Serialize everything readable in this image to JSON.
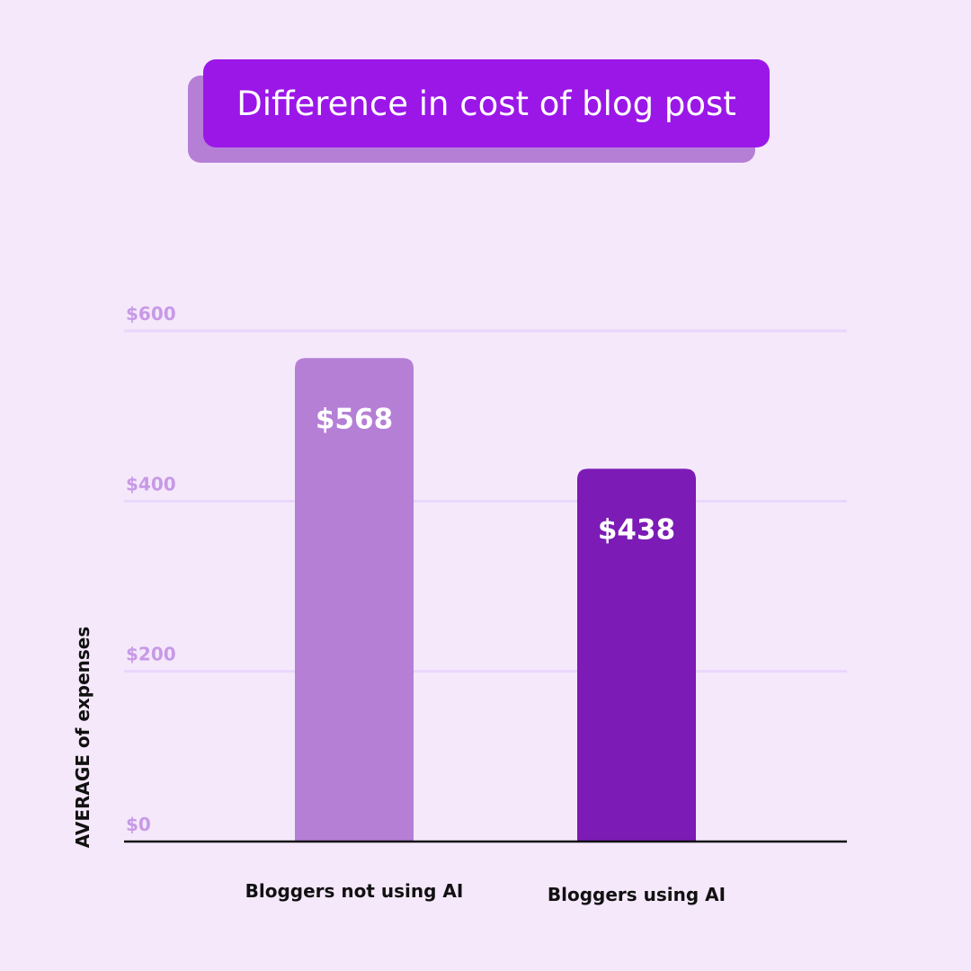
{
  "title": "Difference in cost of blog post",
  "chart_data": {
    "type": "bar",
    "categories": [
      "Bloggers not using AI",
      "Bloggers using AI"
    ],
    "values": [
      568,
      438
    ],
    "value_labels": [
      "$568",
      "$438"
    ],
    "ylabel": "AVERAGE of expenses",
    "xlabel": "",
    "ylim": [
      0,
      600
    ],
    "y_ticks": [
      0,
      200,
      400,
      600
    ],
    "y_tick_labels": [
      "$0",
      "$200",
      "$400",
      "$600"
    ],
    "grid": true,
    "bar_colors": [
      "#b57fd6",
      "#7c1bb5"
    ]
  },
  "colors": {
    "background": "#f5e8fb",
    "title_box": "#9b17e8",
    "title_shadow": "#b57fd6",
    "gridline": "#ead6fb",
    "tick_label": "#c79ae6",
    "axis": "#111111"
  }
}
